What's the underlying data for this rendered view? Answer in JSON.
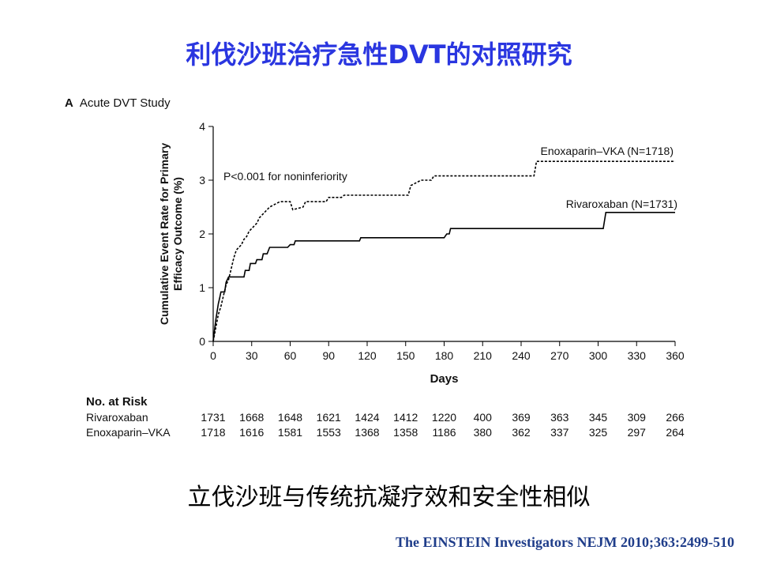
{
  "slide": {
    "title": "利伐沙班治疗急性DVT的对照研究",
    "panel_letter": "A",
    "panel_title": "Acute DVT Study",
    "conclusion": "立伐沙班与传统抗凝疗效和安全性相似",
    "citation": "The EINSTEIN Investigators NEJM 2010;363:2499-510"
  },
  "chart_data": {
    "type": "line",
    "title": "Acute DVT Study",
    "xlabel": "Days",
    "ylabel": "Cumulative Event Rate for Primary Efficacy Outcome (%)",
    "ylabel_lines": [
      "Cumulative Event Rate for Primary",
      "Efficacy Outcome (%)"
    ],
    "xlim": [
      0,
      360
    ],
    "ylim": [
      0,
      4
    ],
    "xticks": [
      0,
      30,
      60,
      90,
      120,
      150,
      180,
      210,
      240,
      270,
      300,
      330,
      360
    ],
    "yticks": [
      0,
      1,
      2,
      3,
      4
    ],
    "grid": false,
    "annotation": "P<0.001 for noninferiority",
    "series": [
      {
        "name": "Rivaroxaban (N=1731)",
        "style": "solid",
        "color": "#000000",
        "points": [
          [
            0,
            0
          ],
          [
            1,
            0.2
          ],
          [
            2,
            0.4
          ],
          [
            3,
            0.55
          ],
          [
            4,
            0.7
          ],
          [
            5,
            0.8
          ],
          [
            6,
            0.92
          ],
          [
            9,
            0.92
          ],
          [
            10,
            1.1
          ],
          [
            12,
            1.2
          ],
          [
            24,
            1.2
          ],
          [
            25,
            1.32
          ],
          [
            28,
            1.32
          ],
          [
            29,
            1.45
          ],
          [
            33,
            1.45
          ],
          [
            34,
            1.52
          ],
          [
            38,
            1.52
          ],
          [
            39,
            1.63
          ],
          [
            42,
            1.63
          ],
          [
            44,
            1.75
          ],
          [
            58,
            1.75
          ],
          [
            60,
            1.8
          ],
          [
            63,
            1.8
          ],
          [
            64,
            1.87
          ],
          [
            114,
            1.87
          ],
          [
            115,
            1.93
          ],
          [
            180,
            1.93
          ],
          [
            182,
            2.0
          ],
          [
            184,
            2.0
          ],
          [
            185,
            2.1
          ],
          [
            304,
            2.1
          ],
          [
            306,
            2.4
          ],
          [
            360,
            2.4
          ]
        ]
      },
      {
        "name": "Enoxaparin–VKA (N=1718)",
        "style": "dashed",
        "color": "#000000",
        "points": [
          [
            0,
            0
          ],
          [
            2,
            0.25
          ],
          [
            4,
            0.5
          ],
          [
            6,
            0.65
          ],
          [
            8,
            0.85
          ],
          [
            10,
            1.05
          ],
          [
            12,
            1.15
          ],
          [
            14,
            1.35
          ],
          [
            16,
            1.55
          ],
          [
            18,
            1.7
          ],
          [
            20,
            1.75
          ],
          [
            22,
            1.8
          ],
          [
            24,
            1.9
          ],
          [
            26,
            1.95
          ],
          [
            28,
            2.05
          ],
          [
            30,
            2.1
          ],
          [
            34,
            2.2
          ],
          [
            36,
            2.3
          ],
          [
            40,
            2.4
          ],
          [
            44,
            2.5
          ],
          [
            48,
            2.55
          ],
          [
            52,
            2.6
          ],
          [
            60,
            2.6
          ],
          [
            62,
            2.45
          ],
          [
            70,
            2.5
          ],
          [
            72,
            2.6
          ],
          [
            88,
            2.6
          ],
          [
            90,
            2.68
          ],
          [
            100,
            2.68
          ],
          [
            102,
            2.72
          ],
          [
            152,
            2.72
          ],
          [
            154,
            2.9
          ],
          [
            158,
            2.95
          ],
          [
            162,
            3.0
          ],
          [
            170,
            3.0
          ],
          [
            172,
            3.08
          ],
          [
            250,
            3.08
          ],
          [
            252,
            3.35
          ],
          [
            360,
            3.35
          ]
        ]
      }
    ],
    "risk_table": {
      "title": "No. at Risk",
      "rows": [
        {
          "label": "Rivaroxaban",
          "values": [
            "1731",
            "1668",
            "1648",
            "1621",
            "1424",
            "1412",
            "1220",
            "400",
            "369",
            "363",
            "345",
            "309",
            "266"
          ]
        },
        {
          "label": "Enoxaparin–VKA",
          "values": [
            "1718",
            "1616",
            "1581",
            "1553",
            "1368",
            "1358",
            "1186",
            "380",
            "362",
            "337",
            "325",
            "297",
            "264"
          ]
        }
      ]
    }
  }
}
